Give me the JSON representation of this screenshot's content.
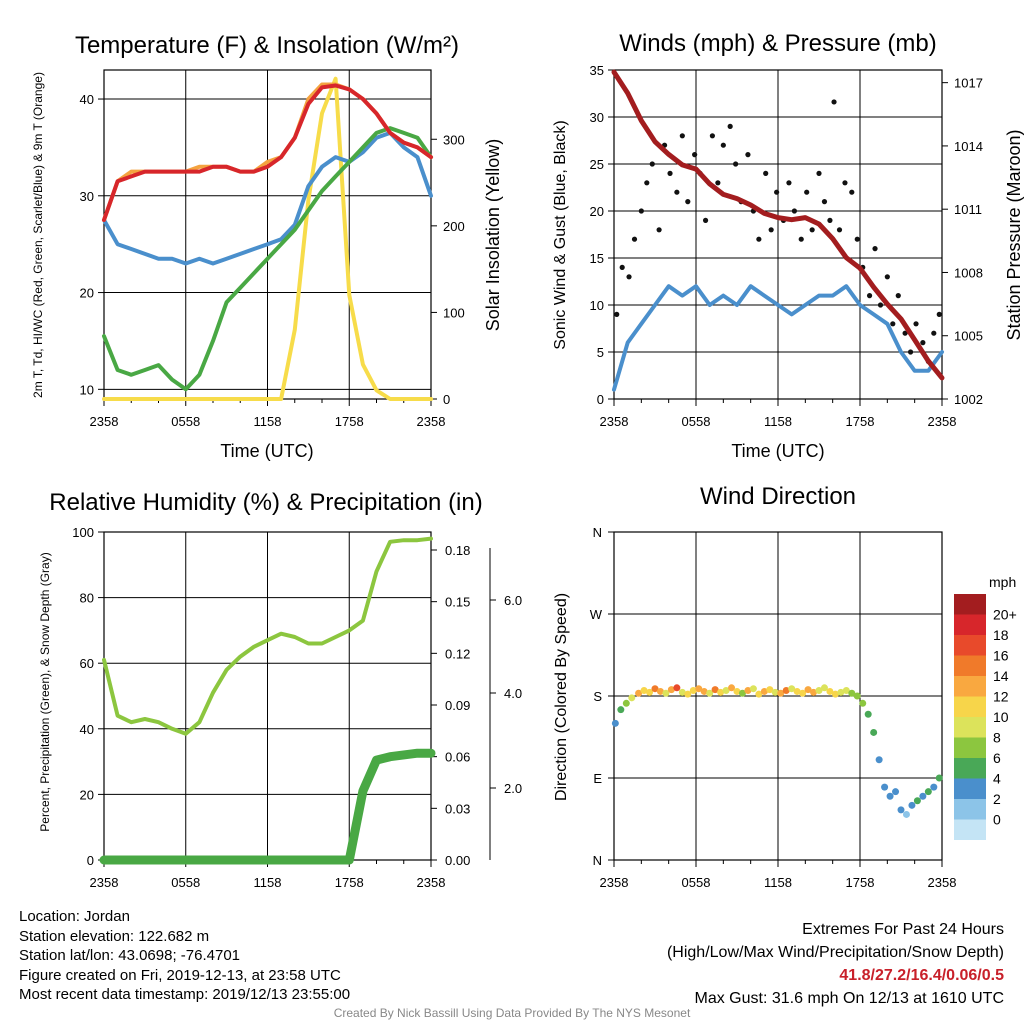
{
  "footer": {
    "location": "Location: Jordan",
    "elevation": "Station elevation: 122.682 m",
    "latlon": "Station lat/lon: 43.0698; -76.4701",
    "created": "Figure created on Fri, 2019-12-13, at 23:58 UTC",
    "recent": "Most recent data timestamp: 2019/12/13 23:55:00",
    "extremes_title": "Extremes For Past 24 Hours",
    "extremes_sub": "(High/Low/Max Wind/Precipitation/Snow Depth)",
    "extremes_values": "41.8/27.2/16.4/0.06/0.5",
    "max_gust": "Max Gust: 31.6 mph On 12/13 at 1610 UTC",
    "credit": "Created By Nick Bassill Using Data Provided By The NYS Mesonet"
  },
  "chart_data": [
    {
      "id": "temp",
      "type": "line",
      "title": "Temperature (F) & Insolation (W/m²)",
      "xlabel": "Time (UTC)",
      "ylabel": "2m T, Td, HI/WC (Red, Green, Scarlet/Blue) & 9m T (Orange)",
      "ylabel2": "Solar Insolation (Yellow)",
      "x_ticks": [
        "2358",
        "0558",
        "1158",
        "1758",
        "2358"
      ],
      "ylim": [
        9,
        43
      ],
      "y_ticks": [
        10,
        20,
        30,
        40
      ],
      "y2lim": [
        0,
        380
      ],
      "y2_ticks": [
        0,
        100,
        200,
        300
      ],
      "x_hours": [
        0,
        1,
        2,
        3,
        4,
        5,
        6,
        7,
        8,
        9,
        10,
        11,
        12,
        13,
        14,
        15,
        16,
        17,
        18,
        19,
        20,
        21,
        22,
        23,
        24
      ],
      "series": [
        {
          "color": "#f7dc4a",
          "axis": "right",
          "values": [
            0,
            0,
            0,
            0,
            0,
            0,
            0,
            0,
            0,
            0,
            0,
            0,
            0,
            0,
            80,
            230,
            330,
            370,
            120,
            40,
            10,
            0,
            0,
            0,
            0
          ]
        },
        {
          "color": "#4a8fcc",
          "axis": "left",
          "values": [
            27.5,
            25,
            24.5,
            24,
            23.5,
            23.5,
            23,
            23.5,
            23,
            23.5,
            24,
            24.5,
            25,
            25.5,
            27,
            31,
            33,
            34,
            33.5,
            34.5,
            36,
            36.5,
            35,
            34,
            30
          ]
        },
        {
          "color": "#49a844",
          "axis": "left",
          "values": [
            15.5,
            12,
            11.5,
            12,
            12.5,
            11,
            10,
            11.5,
            15,
            19,
            20.5,
            22,
            23.5,
            25,
            26.5,
            28.5,
            30.5,
            32,
            33.5,
            35,
            36.5,
            37,
            36.5,
            36,
            34
          ]
        },
        {
          "color": "#f4a340",
          "axis": "left",
          "values": [
            27.5,
            31.5,
            32.5,
            32.5,
            32.5,
            32.5,
            32.5,
            33,
            33,
            33,
            32.5,
            32.5,
            33.5,
            34,
            36,
            40,
            41.5,
            41.5,
            41,
            40,
            38.5,
            36.5,
            35.5,
            35,
            34
          ]
        },
        {
          "color": "#d7262b",
          "axis": "left",
          "values": [
            27.5,
            31.5,
            32,
            32.5,
            32.5,
            32.5,
            32.5,
            32.5,
            33,
            33,
            32.5,
            32.5,
            33,
            34,
            36,
            39.5,
            41.2,
            41.4,
            41,
            40,
            38.5,
            36.5,
            35.5,
            35,
            34
          ]
        }
      ]
    },
    {
      "id": "wind",
      "type": "line",
      "title": "Winds (mph) & Pressure (mb)",
      "xlabel": "Time (UTC)",
      "ylabel": "Sonic Wind & Gust (Blue, Black)",
      "ylabel2": "Station Pressure (Maroon)",
      "x_ticks": [
        "2358",
        "0558",
        "1158",
        "1758",
        "2358"
      ],
      "ylim": [
        0,
        35
      ],
      "y_ticks": [
        0,
        5,
        10,
        15,
        20,
        25,
        30,
        35
      ],
      "y2lim": [
        1002,
        1017.6
      ],
      "y2_ticks": [
        1002,
        1005,
        1008,
        1011,
        1014,
        1017
      ],
      "x_hours": [
        0,
        1,
        2,
        3,
        4,
        5,
        6,
        7,
        8,
        9,
        10,
        11,
        12,
        13,
        14,
        15,
        16,
        17,
        18,
        19,
        20,
        21,
        22,
        23,
        24
      ],
      "series": [
        {
          "color": "#4a8fcc",
          "axis": "left",
          "values": [
            1,
            6,
            8,
            10,
            12,
            11,
            12,
            10,
            11,
            10,
            12,
            11,
            10,
            9,
            10,
            11,
            11,
            12,
            10,
            9,
            8,
            5,
            3,
            3,
            5
          ]
        },
        {
          "color": "#a31d1f",
          "axis": "right",
          "values": [
            1017.5,
            1016.5,
            1015.2,
            1014.2,
            1013.6,
            1013.1,
            1012.9,
            1012.2,
            1011.7,
            1011.5,
            1011.2,
            1010.8,
            1010.6,
            1010.5,
            1010.6,
            1010.3,
            1009.6,
            1008.7,
            1008.2,
            1007.3,
            1006.5,
            1005.8,
            1004.8,
            1003.8,
            1003
          ]
        }
      ],
      "gust": {
        "color": "#111111",
        "x": [
          0.2,
          0.6,
          1.1,
          1.5,
          2.0,
          2.4,
          2.8,
          3.3,
          3.7,
          4.1,
          4.6,
          5.0,
          5.4,
          5.9,
          6.3,
          6.7,
          7.2,
          7.6,
          8.0,
          8.5,
          8.9,
          9.3,
          9.8,
          10.2,
          10.6,
          11.1,
          11.5,
          11.9,
          12.4,
          12.8,
          13.2,
          13.7,
          14.1,
          14.5,
          15.0,
          15.4,
          15.8,
          16.1,
          16.5,
          16.9,
          17.4,
          17.8,
          18.2,
          18.7,
          19.1,
          19.5,
          20.0,
          20.4,
          20.8,
          21.3,
          21.7,
          22.1,
          22.6,
          23.0,
          23.4,
          23.8
        ],
        "values": [
          9,
          14,
          13,
          17,
          20,
          23,
          25,
          18,
          27,
          24,
          22,
          28,
          21,
          26,
          24,
          19,
          28,
          23,
          27,
          29,
          25,
          21,
          26,
          20,
          17,
          24,
          18,
          22,
          19,
          23,
          20,
          17,
          22,
          18,
          24,
          21,
          19,
          31.6,
          18,
          23,
          22,
          17,
          14,
          11,
          16,
          10,
          13,
          8,
          11,
          7,
          5,
          8,
          6,
          4,
          7,
          9
        ]
      }
    },
    {
      "id": "rh",
      "type": "line",
      "title": "Relative Humidity (%) & Precipitation (in)",
      "ylabel": "Percent, Precipitation (Green), & Snow Depth (Gray)",
      "x_ticks": [
        "2358",
        "0558",
        "1158",
        "1758",
        "2358"
      ],
      "ylim": [
        0,
        100
      ],
      "y_ticks": [
        0,
        20,
        40,
        60,
        80,
        100
      ],
      "y2_ticks": [
        "0.00",
        "0.03",
        "0.06",
        "0.09",
        "0.12",
        "0.15",
        "0.18"
      ],
      "y3_ticks": [
        "2.0",
        "4.0",
        "6.0"
      ],
      "x_hours": [
        0,
        1,
        2,
        3,
        4,
        5,
        6,
        7,
        8,
        9,
        10,
        11,
        12,
        13,
        14,
        15,
        16,
        17,
        18,
        19,
        20,
        21,
        22,
        23,
        24
      ],
      "series": [
        {
          "color": "#8cc63f",
          "axis": "left",
          "values": [
            61,
            44,
            42,
            43,
            42,
            40,
            38.5,
            42,
            51,
            58,
            62,
            65,
            67,
            69,
            68,
            66,
            66,
            68,
            70,
            73,
            88,
            97,
            97.5,
            97.5,
            98
          ]
        },
        {
          "color": "#49a844",
          "axis": "right",
          "values": [
            0,
            0,
            0,
            0,
            0,
            0,
            0,
            0,
            0,
            0,
            0,
            0,
            0,
            0,
            0,
            0,
            0,
            0,
            0,
            0.04,
            0.058,
            0.06,
            0.061,
            0.062,
            0.062
          ]
        }
      ]
    },
    {
      "id": "dir",
      "type": "scatter",
      "title": "Wind Direction",
      "ylabel": "Direction (Colored By Speed)",
      "x_ticks": [
        "2358",
        "0558",
        "1158",
        "1758",
        "2358"
      ],
      "y_ticks": [
        "N",
        "E",
        "S",
        "W",
        "N"
      ],
      "legend": {
        "unit": "mph",
        "labels": [
          "20+",
          "18",
          "16",
          "14",
          "12",
          "10",
          "8",
          "6",
          "4",
          "2",
          "0"
        ],
        "colors": [
          "#a31d1f",
          "#d7262b",
          "#e84a2b",
          "#f07a2a",
          "#f9a840",
          "#f7d54a",
          "#dce35b",
          "#8cc63f",
          "#49a857",
          "#4a8fcc",
          "#8cc4e8",
          "#c4e4f5"
        ]
      },
      "x": [
        0.1,
        0.5,
        0.9,
        1.3,
        1.8,
        2.2,
        2.6,
        3.0,
        3.4,
        3.8,
        4.2,
        4.6,
        5.0,
        5.4,
        5.8,
        6.2,
        6.6,
        7.0,
        7.4,
        7.8,
        8.2,
        8.6,
        9.0,
        9.4,
        9.8,
        10.2,
        10.6,
        11.0,
        11.4,
        11.8,
        12.2,
        12.6,
        13.0,
        13.4,
        13.8,
        14.2,
        14.6,
        15.0,
        15.4,
        15.8,
        16.2,
        16.6,
        17.0,
        17.4,
        17.8,
        18.2,
        18.6,
        19.0,
        19.4,
        19.8,
        20.2,
        20.6,
        21.0,
        21.4,
        21.8,
        22.2,
        22.6,
        23.0,
        23.4,
        23.8
      ],
      "values": [
        150,
        165,
        172,
        178,
        183,
        186,
        184,
        188,
        185,
        183,
        187,
        189,
        184,
        182,
        186,
        188,
        185,
        183,
        187,
        184,
        186,
        189,
        185,
        183,
        186,
        188,
        182,
        185,
        187,
        184,
        183,
        186,
        188,
        185,
        183,
        187,
        184,
        186,
        189,
        185,
        182,
        184,
        186,
        183,
        180,
        172,
        160,
        140,
        110,
        80,
        70,
        75,
        55,
        50,
        60,
        65,
        70,
        75,
        80,
        90
      ],
      "speeds": [
        3,
        5,
        7,
        9,
        12,
        11,
        10,
        14,
        13,
        9,
        12,
        16,
        8,
        11,
        10,
        13,
        12,
        9,
        14,
        11,
        8,
        13,
        10,
        7,
        12,
        9,
        11,
        13,
        10,
        8,
        12,
        14,
        9,
        11,
        10,
        12,
        13,
        9,
        8,
        11,
        10,
        9,
        8,
        7,
        6,
        6,
        5,
        4,
        3,
        3,
        2,
        3,
        2,
        1,
        3,
        4,
        3,
        4,
        3,
        5
      ]
    }
  ]
}
